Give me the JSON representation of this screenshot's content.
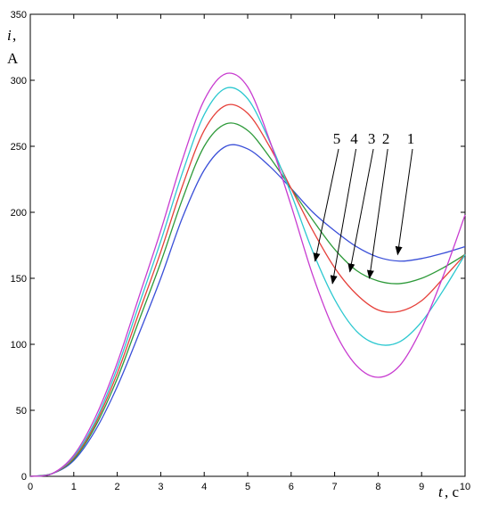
{
  "chart_data": {
    "type": "line",
    "xlabel_var": "t",
    "xlabel_unit": ", c",
    "ylabel_var": "i",
    "ylabel_comma": ",",
    "ylabel_unit": "A",
    "xlim": [
      0,
      10
    ],
    "ylim": [
      0,
      350
    ],
    "grid": false,
    "x_ticks": [
      0,
      1,
      2,
      3,
      4,
      5,
      6,
      7,
      8,
      9,
      10
    ],
    "y_ticks": [
      0,
      50,
      100,
      150,
      200,
      250,
      300,
      350
    ],
    "x": [
      0,
      0.5,
      1,
      1.5,
      2,
      2.5,
      3,
      3.5,
      4,
      4.5,
      5,
      5.5,
      6,
      6.5,
      7,
      7.5,
      8,
      8.5,
      9,
      9.5,
      10
    ],
    "series": [
      {
        "name": "1",
        "color": "#3a4fd8",
        "values": [
          0,
          2,
          12,
          35,
          68,
          108,
          150,
          196,
          232,
          250,
          248,
          235,
          218,
          200,
          186,
          174,
          166,
          163,
          165,
          169,
          174
        ]
      },
      {
        "name": "2",
        "color": "#2e9a3a",
        "values": [
          0,
          2,
          13,
          38,
          74,
          118,
          162,
          210,
          250,
          267,
          262,
          242,
          218,
          194,
          172,
          156,
          148,
          146,
          150,
          158,
          168
        ]
      },
      {
        "name": "3",
        "color": "#e6403a",
        "values": [
          0,
          2,
          14,
          40,
          78,
          124,
          170,
          220,
          262,
          281,
          275,
          250,
          218,
          186,
          158,
          138,
          126,
          125,
          133,
          150,
          168
        ]
      },
      {
        "name": "4",
        "color": "#2cc8d0",
        "values": [
          0,
          2,
          15,
          42,
          82,
          130,
          178,
          230,
          274,
          294,
          286,
          254,
          214,
          170,
          134,
          110,
          100,
          102,
          117,
          141,
          168
        ]
      },
      {
        "name": "5",
        "color": "#c83cd0",
        "values": [
          0,
          2,
          16,
          45,
          86,
          136,
          186,
          240,
          285,
          305,
          295,
          255,
          205,
          152,
          110,
          84,
          75,
          84,
          112,
          152,
          198
        ]
      }
    ],
    "annotations": [
      {
        "label": "1",
        "text_at": [
          8.75,
          252
        ],
        "arrow_to": [
          8.45,
          168
        ]
      },
      {
        "label": "2",
        "text_at": [
          8.18,
          252
        ],
        "arrow_to": [
          7.8,
          150
        ]
      },
      {
        "label": "3",
        "text_at": [
          7.85,
          252
        ],
        "arrow_to": [
          7.35,
          155
        ]
      },
      {
        "label": "4",
        "text_at": [
          7.45,
          252
        ],
        "arrow_to": [
          6.95,
          146
        ]
      },
      {
        "label": "5",
        "text_at": [
          7.05,
          252
        ],
        "arrow_to": [
          6.55,
          163
        ]
      }
    ]
  }
}
